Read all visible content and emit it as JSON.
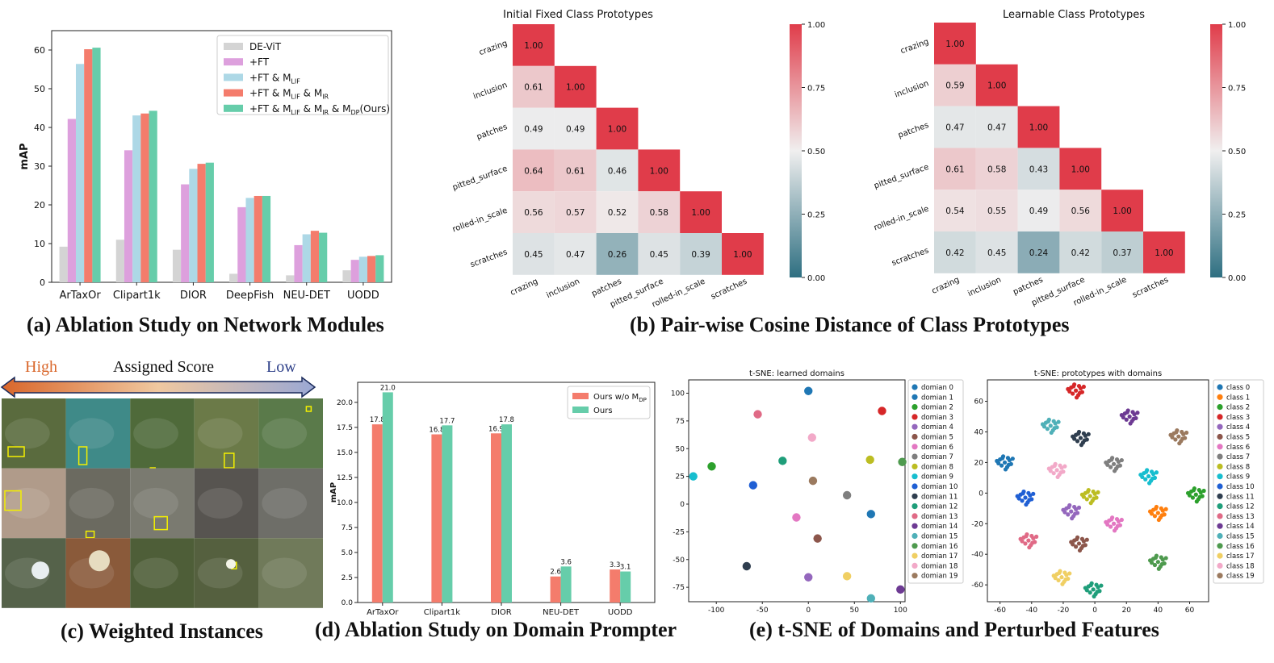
{
  "captions": {
    "a": "(a) Ablation Study on Network Modules",
    "b": "(b) Pair-wise Cosine Distance of Class Prototypes",
    "c": "(c) Weighted Instances",
    "d": "(d) Ablation Study on Domain Prompter",
    "e": "(e) t-SNE of Domains and Perturbed Features"
  },
  "assigned_score": {
    "high": "High",
    "title": "Assigned Score",
    "low": "Low"
  },
  "colors": {
    "devit": "#d4d4d4",
    "ft": "#dda0dd",
    "ft_lif": "#add8e6",
    "ft_lif_ir": "#f47c6c",
    "ours": "#66cdaa",
    "salmon": "#f47c6c",
    "mint": "#66cdaa",
    "hm_high": "#e03c4a",
    "hm_mid": "#f0efef",
    "hm_low": "#2e6f81",
    "arrow_left": "#d9662a",
    "arrow_right": "#9aa8d4",
    "high_text": "#d9662a",
    "low_text": "#2c3e88"
  },
  "chart_data": [
    {
      "id": "a",
      "type": "bar",
      "ylabel": "mAP",
      "ylim": [
        0,
        65
      ],
      "yticks": [
        0,
        10,
        20,
        30,
        40,
        50,
        60
      ],
      "categories": [
        "ArTaxOr",
        "Clipart1k",
        "DIOR",
        "DeepFish",
        "NEU-DET",
        "UODD"
      ],
      "series": [
        {
          "name": "DE-ViT",
          "color_key": "devit",
          "values": [
            9.2,
            11.0,
            8.4,
            2.2,
            1.8,
            3.1
          ]
        },
        {
          "name": "+FT",
          "color_key": "ft",
          "values": [
            42.2,
            34.1,
            25.3,
            19.4,
            9.6,
            5.8
          ]
        },
        {
          "name": "+FT & M_LIF",
          "color_key": "ft_lif",
          "values": [
            56.4,
            43.1,
            29.3,
            21.8,
            12.4,
            6.6
          ]
        },
        {
          "name": "+FT & M_LIF & M_IR",
          "color_key": "ft_lif_ir",
          "values": [
            60.2,
            43.6,
            30.6,
            22.3,
            13.3,
            6.8
          ]
        },
        {
          "name": "+FT & M_LIF & M_IR & M_DP(Ours)",
          "color_key": "ours",
          "values": [
            60.6,
            44.3,
            30.9,
            22.3,
            12.8,
            7.0
          ]
        }
      ],
      "legend_labels": [
        {
          "main": "DE-ViT",
          "parts": []
        },
        {
          "main": "+FT",
          "parts": []
        },
        {
          "main": "+FT & M",
          "parts": [
            [
              "LIF",
              ""
            ]
          ]
        },
        {
          "main": "+FT & M",
          "parts": [
            [
              "LIF",
              " & M"
            ],
            [
              "IR",
              ""
            ]
          ]
        },
        {
          "main": "+FT & M",
          "parts": [
            [
              "LIF",
              " & M"
            ],
            [
              "IR",
              " & M"
            ],
            [
              "DP",
              "(Ours)"
            ]
          ]
        }
      ]
    },
    {
      "id": "b1",
      "type": "heatmap",
      "title": "Initial Fixed Class Prototypes",
      "labels": [
        "crazing",
        "inclusion",
        "patches",
        "pitted_surface",
        "rolled-in_scale",
        "scratches"
      ],
      "matrix": [
        [
          1.0
        ],
        [
          0.61,
          1.0
        ],
        [
          0.49,
          0.49,
          1.0
        ],
        [
          0.64,
          0.61,
          0.46,
          1.0
        ],
        [
          0.56,
          0.57,
          0.52,
          0.58,
          1.0
        ],
        [
          0.45,
          0.47,
          0.26,
          0.45,
          0.39,
          1.0
        ]
      ],
      "colorbar_ticks": [
        "1.00",
        "0.75",
        "0.50",
        "0.25",
        "0.00"
      ]
    },
    {
      "id": "b2",
      "type": "heatmap",
      "title": "Learnable Class Prototypes",
      "labels": [
        "crazing",
        "inclusion",
        "patches",
        "pitted_surface",
        "rolled-in_scale",
        "scratches"
      ],
      "matrix": [
        [
          1.0
        ],
        [
          0.59,
          1.0
        ],
        [
          0.47,
          0.47,
          1.0
        ],
        [
          0.61,
          0.58,
          0.43,
          1.0
        ],
        [
          0.54,
          0.55,
          0.49,
          0.56,
          1.0
        ],
        [
          0.42,
          0.45,
          0.24,
          0.42,
          0.37,
          1.0
        ]
      ],
      "colorbar_ticks": [
        "1.00",
        "0.75",
        "0.50",
        "0.25",
        "0.00"
      ]
    },
    {
      "id": "d",
      "type": "bar",
      "ylabel": "mAP",
      "ylim": [
        0,
        22
      ],
      "yticks": [
        0.0,
        2.5,
        5.0,
        7.5,
        10.0,
        12.5,
        15.0,
        17.5,
        20.0
      ],
      "categories": [
        "ArTaxOr",
        "Clipart1k",
        "DIOR",
        "NEU-DET",
        "UODD"
      ],
      "series": [
        {
          "name": "Ours w/o M_DP",
          "legend_main": "Ours w/o M",
          "legend_sub": "DP",
          "color_key": "salmon",
          "values": [
            17.8,
            16.8,
            16.9,
            2.6,
            3.3
          ]
        },
        {
          "name": "Ours",
          "legend_main": "Ours",
          "legend_sub": "",
          "color_key": "mint",
          "values": [
            21.0,
            17.7,
            17.8,
            3.6,
            3.1
          ]
        }
      ],
      "value_labels": [
        [
          "17.8",
          "16.8",
          "16.9",
          "2.6",
          "3.3"
        ],
        [
          "21.0",
          "17.7",
          "17.8",
          "3.6",
          "3.1"
        ]
      ]
    },
    {
      "id": "e1",
      "type": "scatter",
      "title": "t-SNE: learned domains",
      "xlim": [
        -130,
        105
      ],
      "ylim": [
        -88,
        112
      ],
      "xticks": [
        -100,
        -50,
        0,
        50,
        100
      ],
      "yticks": [
        -75,
        -50,
        -25,
        0,
        25,
        50,
        75,
        100
      ],
      "points": [
        {
          "name": "domian 0",
          "x": 0,
          "y": 102
        },
        {
          "name": "domian 1",
          "x": 68,
          "y": -9
        },
        {
          "name": "domian 2",
          "x": -105,
          "y": 34
        },
        {
          "name": "domian 3",
          "x": 80,
          "y": 84
        },
        {
          "name": "domian 4",
          "x": 0,
          "y": -66
        },
        {
          "name": "domian 5",
          "x": 10,
          "y": -31
        },
        {
          "name": "domian 6",
          "x": -13,
          "y": -12
        },
        {
          "name": "domian 7",
          "x": 42,
          "y": 8
        },
        {
          "name": "domian 8",
          "x": 67,
          "y": 40
        },
        {
          "name": "domian 9",
          "x": -125,
          "y": 25
        },
        {
          "name": "domian 10",
          "x": -60,
          "y": 17
        },
        {
          "name": "domian 11",
          "x": -67,
          "y": -56
        },
        {
          "name": "domian 12",
          "x": -28,
          "y": 39
        },
        {
          "name": "domian 13",
          "x": -55,
          "y": 81
        },
        {
          "name": "domian 14",
          "x": 100,
          "y": -77
        },
        {
          "name": "domian 15",
          "x": 68,
          "y": -85
        },
        {
          "name": "domian 16",
          "x": 102,
          "y": 38
        },
        {
          "name": "domian 17",
          "x": 42,
          "y": -65
        },
        {
          "name": "domian 18",
          "x": 4,
          "y": 60
        },
        {
          "name": "domian 19",
          "x": 5,
          "y": 21
        }
      ]
    },
    {
      "id": "e2",
      "type": "scatter",
      "title": "t-SNE: prototypes with domains",
      "xlim": [
        -68,
        72
      ],
      "ylim": [
        -71,
        74
      ],
      "xticks": [
        -60,
        -40,
        -20,
        0,
        20,
        40,
        60
      ],
      "yticks": [
        -60,
        -40,
        -20,
        0,
        20,
        40,
        60
      ],
      "clusters": [
        {
          "name": "class 0",
          "x": -57,
          "y": 20
        },
        {
          "name": "class 1",
          "x": 40,
          "y": -13
        },
        {
          "name": "class 2",
          "x": 64,
          "y": -1
        },
        {
          "name": "class 3",
          "x": -12,
          "y": 67
        },
        {
          "name": "class 4",
          "x": -15,
          "y": -12
        },
        {
          "name": "class 5",
          "x": -10,
          "y": -33
        },
        {
          "name": "class 6",
          "x": 12,
          "y": -20
        },
        {
          "name": "class 7",
          "x": 12,
          "y": 19
        },
        {
          "name": "class 8",
          "x": -3,
          "y": -2
        },
        {
          "name": "class 9",
          "x": 34,
          "y": 11
        },
        {
          "name": "class 10",
          "x": -44,
          "y": -3
        },
        {
          "name": "class 11",
          "x": -9,
          "y": 36
        },
        {
          "name": "class 12",
          "x": -1,
          "y": -63
        },
        {
          "name": "class 13",
          "x": -42,
          "y": -31
        },
        {
          "name": "class 14",
          "x": 22,
          "y": 50
        },
        {
          "name": "class 15",
          "x": -28,
          "y": 44
        },
        {
          "name": "class 16",
          "x": 40,
          "y": -45
        },
        {
          "name": "class 17",
          "x": -21,
          "y": -55
        },
        {
          "name": "class 18",
          "x": -24,
          "y": 15
        },
        {
          "name": "class 19",
          "x": 53,
          "y": 37
        }
      ]
    }
  ],
  "palette10": [
    "#1f77b4",
    "#ff7f0e",
    "#2ca02c",
    "#d62728",
    "#9467bd",
    "#8c564b",
    "#e377c2",
    "#7f7f7f",
    "#bcbd22",
    "#17becf"
  ],
  "palette20_domains": [
    "#1f77b4",
    "#1f77b4",
    "#2ca02c",
    "#d62728",
    "#9467bd",
    "#8c564b",
    "#e377c2",
    "#7f7f7f",
    "#bcbd22",
    "#17becf",
    "#1f5fd4",
    "#2f3e4f",
    "#1f9e7a",
    "#e06a86",
    "#6d3a93",
    "#4fb0b8",
    "#4e9a4e",
    "#f0cf63",
    "#f2a9c8",
    "#9b7a5f"
  ],
  "palette20_classes": [
    "#1f77b4",
    "#ff7f0e",
    "#2ca02c",
    "#d62728",
    "#9467bd",
    "#8c564b",
    "#e377c2",
    "#7f7f7f",
    "#bcbd22",
    "#17becf",
    "#1f5fd4",
    "#2f3e4f",
    "#1f9e7a",
    "#e06a86",
    "#6d3a93",
    "#4fb0b8",
    "#4e9a4e",
    "#f0cf63",
    "#f2a9c8",
    "#9b7a5f"
  ]
}
